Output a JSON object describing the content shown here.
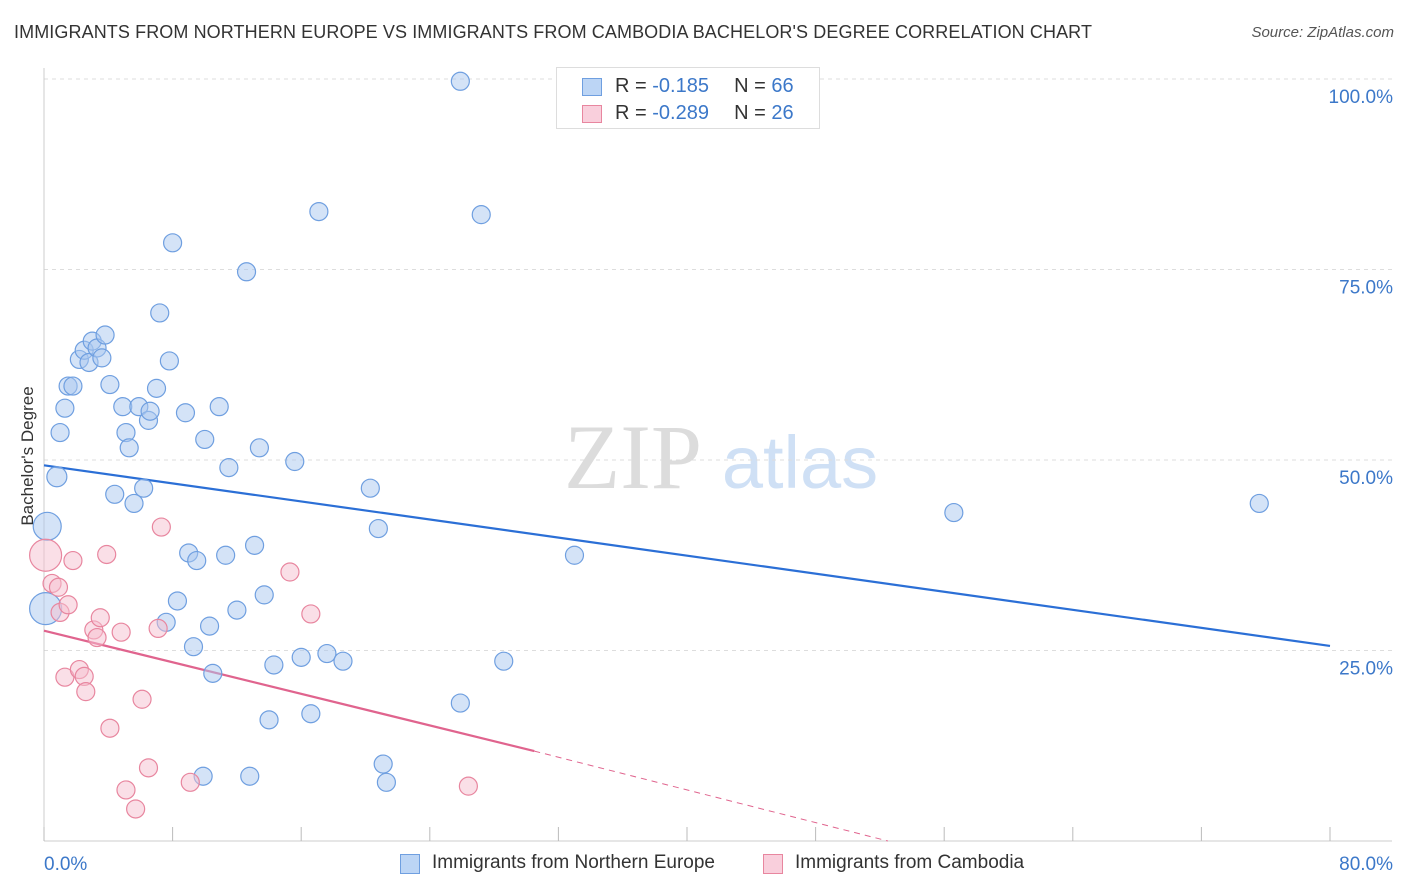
{
  "title": "IMMIGRANTS FROM NORTHERN EUROPE VS IMMIGRANTS FROM CAMBODIA BACHELOR'S DEGREE CORRELATION CHART",
  "source": "Source: ZipAtlas.com",
  "watermark": {
    "zip": "ZIP",
    "atlas": "atlas"
  },
  "colors": {
    "blue_fill": "#a9c8f0",
    "blue_stroke": "#6f9fe0",
    "blue_line": "#2b6fd6",
    "pink_fill": "#f6bfd0",
    "pink_stroke": "#e8869f",
    "pink_line": "#e0648e",
    "value_text": "#3c78c9",
    "grid": "#dddddd"
  },
  "legend_top": [
    {
      "r_label": "R = ",
      "r_value": "-0.185",
      "n_label": "N = ",
      "n_value": "66"
    },
    {
      "r_label": "R = ",
      "r_value": "-0.289",
      "n_label": "N = ",
      "n_value": "26"
    }
  ],
  "chart_data": {
    "type": "scatter",
    "title": "IMMIGRANTS FROM NORTHERN EUROPE VS IMMIGRANTS FROM CAMBODIA BACHELOR'S DEGREE CORRELATION CHART",
    "xlabel": "",
    "ylabel": "Bachelor's Degree",
    "xlim": [
      0,
      80
    ],
    "ylim": [
      0,
      100
    ],
    "x_tick_labels": [
      "0.0%",
      "80.0%"
    ],
    "y_tick_labels": [
      "100.0%",
      "75.0%",
      "50.0%",
      "25.0%"
    ],
    "y_ticks": [
      100,
      75,
      50,
      25
    ],
    "x_ticks_minor": [
      0,
      8,
      16,
      24,
      32,
      40,
      48,
      56,
      64,
      72,
      80
    ],
    "grid": true,
    "legend_position": "bottom",
    "series": [
      {
        "name": "Immigrants from Northern Europe",
        "color": "#a9c8f0",
        "points": [
          [
            0.2,
            41.3,
            14
          ],
          [
            0.8,
            47.8,
            10
          ],
          [
            1.0,
            53.6,
            9
          ],
          [
            1.3,
            56.8,
            9
          ],
          [
            1.5,
            59.7,
            9
          ],
          [
            1.8,
            59.7,
            9
          ],
          [
            2.2,
            63.2,
            9
          ],
          [
            2.5,
            64.4,
            9
          ],
          [
            2.8,
            62.8,
            9
          ],
          [
            3.0,
            65.6,
            9
          ],
          [
            3.3,
            64.7,
            9
          ],
          [
            3.6,
            63.4,
            9
          ],
          [
            3.8,
            66.4,
            9
          ],
          [
            4.1,
            59.9,
            9
          ],
          [
            4.4,
            45.5,
            9
          ],
          [
            4.9,
            57.0,
            9
          ],
          [
            5.1,
            53.6,
            9
          ],
          [
            5.3,
            51.6,
            9
          ],
          [
            5.6,
            44.3,
            9
          ],
          [
            5.9,
            57.0,
            9
          ],
          [
            6.2,
            46.3,
            9
          ],
          [
            6.5,
            55.2,
            9
          ],
          [
            6.6,
            56.4,
            9
          ],
          [
            7.0,
            59.4,
            9
          ],
          [
            7.2,
            69.3,
            9
          ],
          [
            7.6,
            28.7,
            9
          ],
          [
            7.8,
            63.0,
            9
          ],
          [
            8.0,
            78.5,
            9
          ],
          [
            8.3,
            31.5,
            9
          ],
          [
            8.8,
            56.2,
            9
          ],
          [
            9.0,
            37.8,
            9
          ],
          [
            9.3,
            25.5,
            9
          ],
          [
            9.5,
            36.8,
            9
          ],
          [
            9.9,
            8.5,
            9
          ],
          [
            10.0,
            52.7,
            9
          ],
          [
            10.3,
            28.2,
            9
          ],
          [
            10.5,
            22.0,
            9
          ],
          [
            10.9,
            57.0,
            9
          ],
          [
            11.3,
            37.5,
            9
          ],
          [
            11.5,
            49.0,
            9
          ],
          [
            12.0,
            30.3,
            9
          ],
          [
            12.6,
            74.7,
            9
          ],
          [
            12.8,
            8.5,
            9
          ],
          [
            13.1,
            38.8,
            9
          ],
          [
            13.4,
            51.6,
            9
          ],
          [
            13.7,
            32.3,
            9
          ],
          [
            14.0,
            15.9,
            9
          ],
          [
            14.3,
            23.1,
            9
          ],
          [
            15.6,
            49.8,
            9
          ],
          [
            16.0,
            24.1,
            9
          ],
          [
            16.6,
            16.7,
            9
          ],
          [
            17.1,
            82.6,
            9
          ],
          [
            17.6,
            24.6,
            9
          ],
          [
            18.6,
            23.6,
            9
          ],
          [
            20.3,
            46.3,
            9
          ],
          [
            20.8,
            41.0,
            9
          ],
          [
            21.1,
            10.1,
            9
          ],
          [
            21.3,
            7.7,
            9
          ],
          [
            25.9,
            99.7,
            9
          ],
          [
            25.9,
            18.1,
            9
          ],
          [
            27.2,
            82.2,
            9
          ],
          [
            28.6,
            23.6,
            9
          ],
          [
            33.0,
            37.5,
            9
          ],
          [
            56.6,
            43.1,
            9
          ],
          [
            75.6,
            44.3,
            9
          ],
          [
            0.1,
            30.5,
            16
          ]
        ]
      },
      {
        "name": "Immigrants from Cambodia",
        "color": "#f6bfd0",
        "points": [
          [
            0.1,
            37.5,
            16
          ],
          [
            0.5,
            33.8,
            9
          ],
          [
            0.9,
            33.3,
            9
          ],
          [
            1.0,
            30.0,
            9
          ],
          [
            1.3,
            21.5,
            9
          ],
          [
            1.5,
            31.0,
            9
          ],
          [
            1.8,
            36.8,
            9
          ],
          [
            2.2,
            22.5,
            9
          ],
          [
            2.5,
            21.6,
            9
          ],
          [
            2.6,
            19.6,
            9
          ],
          [
            3.1,
            27.7,
            9
          ],
          [
            3.3,
            26.7,
            9
          ],
          [
            3.5,
            29.3,
            9
          ],
          [
            3.9,
            37.6,
            9
          ],
          [
            4.1,
            14.8,
            9
          ],
          [
            4.8,
            27.4,
            9
          ],
          [
            5.1,
            6.7,
            9
          ],
          [
            5.7,
            4.2,
            9
          ],
          [
            6.1,
            18.6,
            9
          ],
          [
            6.5,
            9.6,
            9
          ],
          [
            7.1,
            27.9,
            9
          ],
          [
            7.3,
            41.2,
            9
          ],
          [
            9.1,
            7.7,
            9
          ],
          [
            15.3,
            35.3,
            9
          ],
          [
            16.6,
            29.8,
            9
          ],
          [
            26.4,
            7.2,
            9
          ]
        ]
      }
    ],
    "trend_lines": [
      {
        "series": "Immigrants from Northern Europe",
        "x0": 0,
        "y0": 49.3,
        "x1": 80,
        "y1": 25.6,
        "style": "solid"
      },
      {
        "series": "Immigrants from Cambodia",
        "x0": 0,
        "y0": 27.6,
        "x1": 30.5,
        "y1": 11.8,
        "style": "solid"
      },
      {
        "series": "Immigrants from Cambodia",
        "x0": 30.5,
        "y0": 11.8,
        "x1": 52.5,
        "y1": 0.0,
        "style": "dashed"
      }
    ]
  },
  "legend_bottom": [
    {
      "label": "Immigrants from Northern Europe"
    },
    {
      "label": "Immigrants from Cambodia"
    }
  ]
}
